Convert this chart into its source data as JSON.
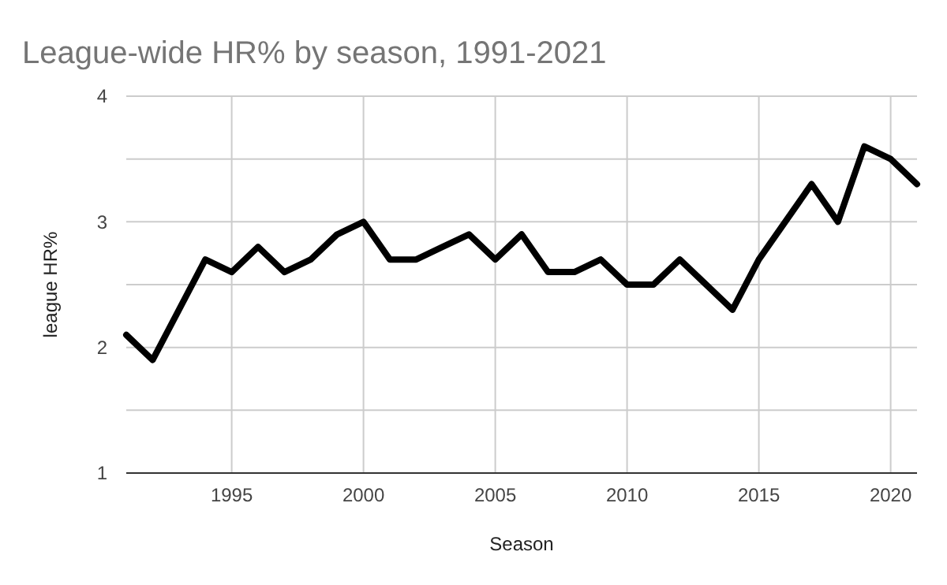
{
  "chart_data": {
    "type": "line",
    "title": "League-wide HR% by season, 1991-2021",
    "xlabel": "Season",
    "ylabel": "league HR%",
    "x": [
      1991,
      1992,
      1993,
      1994,
      1995,
      1996,
      1997,
      1998,
      1999,
      2000,
      2001,
      2002,
      2003,
      2004,
      2005,
      2006,
      2007,
      2008,
      2009,
      2010,
      2011,
      2012,
      2013,
      2014,
      2015,
      2016,
      2017,
      2018,
      2019,
      2020,
      2021
    ],
    "series": [
      {
        "color": "#000000",
        "values": [
          2.1,
          1.9,
          2.3,
          2.7,
          2.6,
          2.8,
          2.6,
          2.7,
          2.9,
          3.0,
          2.7,
          2.7,
          2.8,
          2.9,
          2.7,
          2.9,
          2.6,
          2.6,
          2.7,
          2.5,
          2.5,
          2.7,
          2.5,
          2.3,
          2.7,
          3.0,
          3.3,
          3.0,
          3.6,
          3.5,
          3.3
        ]
      }
    ],
    "xlim": [
      1991,
      2021
    ],
    "xticks": [
      1995,
      2000,
      2005,
      2010,
      2015,
      2020
    ],
    "ylim": [
      1,
      4
    ],
    "yticks": [
      1,
      {
        "value": 1.5,
        "label": null
      },
      2,
      {
        "value": 2.5,
        "label": null
      },
      3,
      {
        "value": 3.5,
        "label": null
      },
      4
    ],
    "grid": true,
    "marker": "none",
    "line_style": "solid"
  }
}
